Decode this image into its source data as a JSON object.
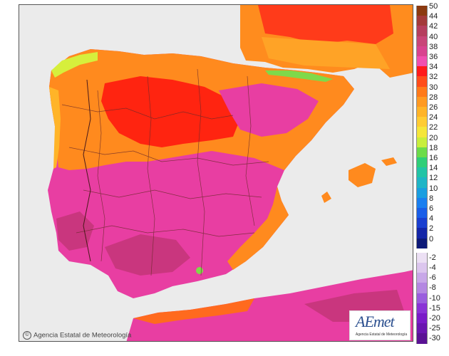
{
  "credit": {
    "symbol": "©",
    "text": "Agencia Estatal de Meteorología"
  },
  "logo": {
    "word": "AEmet",
    "subtitle": "Agencia Estatal de Meteorología"
  },
  "legend": {
    "positive": [
      {
        "label": "50",
        "color": "#8b3a10"
      },
      {
        "label": "44",
        "color": "#a33a3a"
      },
      {
        "label": "42",
        "color": "#b53f5e"
      },
      {
        "label": "40",
        "color": "#c84678"
      },
      {
        "label": "38",
        "color": "#d8438f"
      },
      {
        "label": "36",
        "color": "#f04fb0"
      },
      {
        "label": "34",
        "color": "#ff1a1a"
      },
      {
        "label": "32",
        "color": "#ff4d1a"
      },
      {
        "label": "30",
        "color": "#ff7a1a"
      },
      {
        "label": "28",
        "color": "#ff9a22"
      },
      {
        "label": "26",
        "color": "#ffb428"
      },
      {
        "label": "24",
        "color": "#ffcc33"
      },
      {
        "label": "22",
        "color": "#f5e63a"
      },
      {
        "label": "20",
        "color": "#c8ee3c"
      },
      {
        "label": "18",
        "color": "#6cdc4a"
      },
      {
        "label": "16",
        "color": "#2fcf78"
      },
      {
        "label": "14",
        "color": "#22c4a6"
      },
      {
        "label": "12",
        "color": "#1fb5c6"
      },
      {
        "label": "10",
        "color": "#1a9ee0"
      },
      {
        "label": "8",
        "color": "#1a7ff0"
      },
      {
        "label": "6",
        "color": "#1a5ee8"
      },
      {
        "label": "4",
        "color": "#1a3fd0"
      },
      {
        "label": "2",
        "color": "#1426a8"
      },
      {
        "label": "0",
        "color": "#0d1a78"
      }
    ],
    "negative": [
      {
        "label": "-2",
        "color": "#ece0f4"
      },
      {
        "label": "-4",
        "color": "#dcc6ee"
      },
      {
        "label": "-6",
        "color": "#c8a8e8"
      },
      {
        "label": "-8",
        "color": "#b488e2"
      },
      {
        "label": "-10",
        "color": "#9a5ede"
      },
      {
        "label": "-15",
        "color": "#8a34d6"
      },
      {
        "label": "-20",
        "color": "#7a1cc8"
      },
      {
        "label": "-25",
        "color": "#6a16b0"
      },
      {
        "label": "-30",
        "color": "#5a1294"
      }
    ]
  }
}
